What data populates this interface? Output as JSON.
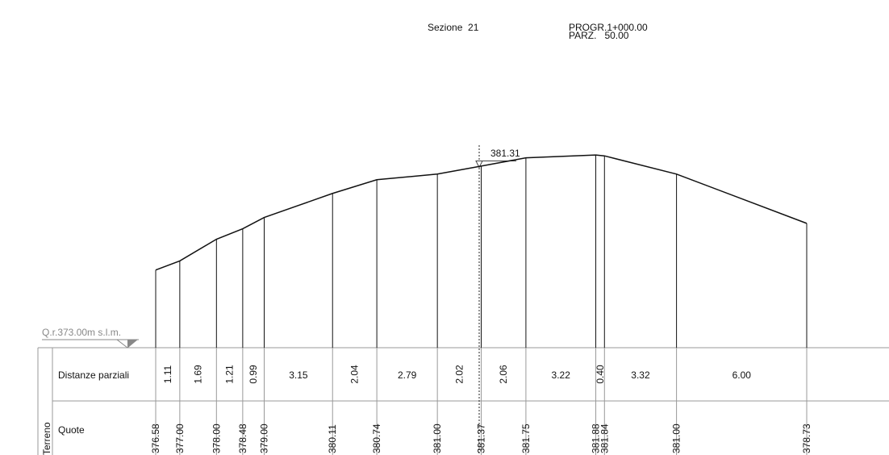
{
  "header": {
    "section": "Sezione  21",
    "progressive": "PROGR.1+000.00",
    "partial": "PARZ.   50.00"
  },
  "reference": {
    "label": "Q.r.373.00m s.l.m.",
    "elevation": 373.0
  },
  "axis_label": "381.31",
  "table": {
    "group_label": "Terreno",
    "row_labels": [
      "Distanze parziali",
      "Quote"
    ]
  },
  "distances": [
    1.11,
    1.69,
    1.21,
    0.99,
    3.15,
    2.04,
    2.79,
    2.02,
    2.06,
    3.22,
    0.4,
    3.32,
    6.0
  ],
  "distance_labels": [
    "1.11",
    "1.69",
    "1.21",
    "0.99",
    "3.15",
    "2.04",
    "2.79",
    "2.02",
    "2.06",
    "3.22",
    "0.40",
    "3.32",
    "6.00"
  ],
  "elevations": [
    376.58,
    377.0,
    378.0,
    378.48,
    379.0,
    380.11,
    380.74,
    381.0,
    381.37,
    381.75,
    381.88,
    381.84,
    381.0,
    378.73
  ],
  "elevation_labels": [
    "376.58",
    "377.00",
    "378.00",
    "378.48",
    "379.00",
    "380.11",
    "380.74",
    "381.00",
    "381.37",
    "381.75",
    "381.88",
    "381.84",
    "381.00",
    "378.73"
  ]
}
